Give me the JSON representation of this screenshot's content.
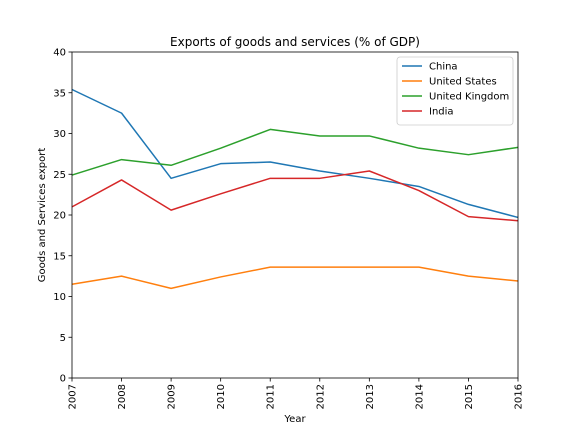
{
  "chart_data": {
    "type": "line",
    "title": "Exports of goods and services (% of GDP)",
    "xlabel": "Year",
    "ylabel": "Goods and Services export",
    "x": [
      2007,
      2008,
      2009,
      2010,
      2011,
      2012,
      2013,
      2014,
      2015,
      2016
    ],
    "xticks": [
      "2007",
      "2008",
      "2009",
      "2010",
      "2011",
      "2012",
      "2013",
      "2014",
      "2015",
      "2016"
    ],
    "yticks": [
      "0",
      "5",
      "10",
      "15",
      "20",
      "25",
      "30",
      "35",
      "40"
    ],
    "xlim": [
      2007,
      2016
    ],
    "ylim": [
      0,
      40
    ],
    "grid": false,
    "legend_position": "top-right",
    "series": [
      {
        "name": "China",
        "color": "#1f77b4",
        "values": [
          35.4,
          32.5,
          24.5,
          26.3,
          26.5,
          25.4,
          24.5,
          23.5,
          21.3,
          19.7
        ]
      },
      {
        "name": "United States",
        "color": "#ff7f0e",
        "values": [
          11.5,
          12.5,
          11.0,
          12.4,
          13.6,
          13.6,
          13.6,
          13.6,
          12.5,
          11.9
        ]
      },
      {
        "name": "United Kingdom",
        "color": "#2ca02c",
        "values": [
          24.9,
          26.8,
          26.1,
          28.2,
          30.5,
          29.7,
          29.7,
          28.2,
          27.4,
          28.3
        ]
      },
      {
        "name": "India",
        "color": "#d62728",
        "values": [
          21.0,
          24.3,
          20.6,
          22.6,
          24.5,
          24.5,
          25.4,
          23.0,
          19.8,
          19.3
        ]
      }
    ]
  }
}
